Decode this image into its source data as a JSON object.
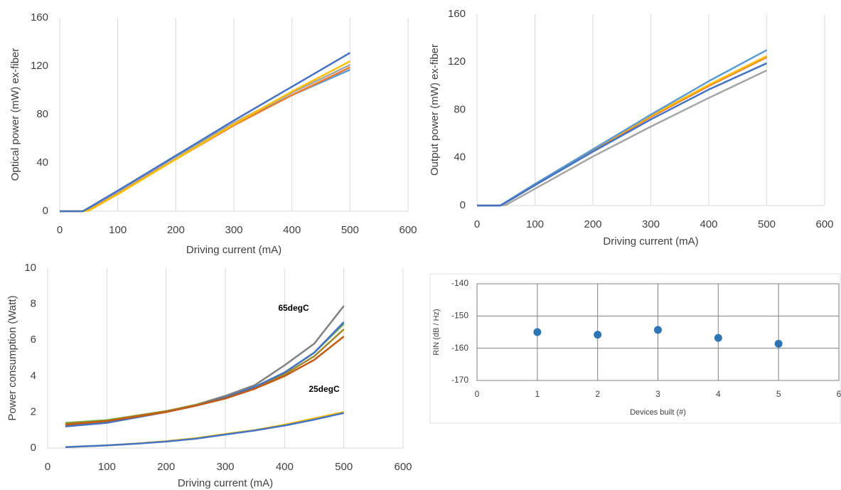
{
  "chart_data": [
    {
      "type": "line",
      "ylabel": "Optical power (mW) ex-fiber",
      "xlabel": "Driving current (mA)",
      "x": [
        0,
        40,
        50,
        100,
        200,
        300,
        400,
        500
      ],
      "series": [
        {
          "color": "#5b9bd5",
          "values": [
            0,
            0,
            2.5,
            16,
            45,
            72,
            96,
            117
          ]
        },
        {
          "color": "#ed7d31",
          "values": [
            0,
            0,
            2,
            15,
            43,
            71,
            96,
            119
          ]
        },
        {
          "color": "#a5a5a5",
          "values": [
            0,
            0,
            2.5,
            16,
            45,
            73,
            98,
            121
          ]
        },
        {
          "color": "#ffc000",
          "values": [
            0,
            0,
            0.5,
            14,
            43,
            72,
            99,
            124
          ]
        },
        {
          "color": "#4472c4",
          "values": [
            0,
            0,
            2.8,
            17,
            46,
            75,
            103,
            131
          ]
        }
      ],
      "xlim": [
        0,
        600
      ],
      "xticks": [
        0,
        100,
        200,
        300,
        400,
        500,
        600
      ],
      "ylim": [
        0,
        160
      ],
      "yticks": [
        0,
        40,
        80,
        120,
        160
      ],
      "grid": "x"
    },
    {
      "type": "line",
      "ylabel": "Output power (mW) ex-fiber",
      "xlabel": "Driving current (mA)",
      "x": [
        0,
        40,
        50,
        100,
        200,
        300,
        400,
        500
      ],
      "series": [
        {
          "color": "#a5a5a5",
          "values": [
            0,
            0,
            0.5,
            14,
            41,
            66,
            90,
            113
          ]
        },
        {
          "color": "#ed7d31",
          "values": [
            0,
            0,
            2.5,
            17,
            46,
            74,
            100,
            124
          ]
        },
        {
          "color": "#ffc000",
          "values": [
            0,
            0,
            3,
            18,
            47,
            75,
            101,
            125
          ]
        },
        {
          "color": "#5b9bd5",
          "values": [
            0,
            0,
            3,
            18,
            47,
            76,
            104,
            130
          ]
        },
        {
          "color": "#4472c4",
          "values": [
            0,
            0,
            2.5,
            17,
            45,
            72,
            97,
            119
          ]
        }
      ],
      "xlim": [
        0,
        600
      ],
      "xticks": [
        0,
        100,
        200,
        300,
        400,
        500,
        600
      ],
      "ylim": [
        0,
        160
      ],
      "yticks": [
        0,
        40,
        80,
        120,
        160
      ],
      "grid": "x"
    },
    {
      "type": "line",
      "ylabel": "Power consumption (Watt)",
      "xlabel": "Driving current (mA)",
      "annotations": [
        "65degC",
        "25degC"
      ],
      "x": [
        30,
        100,
        150,
        200,
        250,
        300,
        350,
        400,
        450,
        500
      ],
      "series": [
        {
          "color": "#70ad47",
          "values": [
            1.4,
            1.55,
            1.8,
            2.05,
            2.4,
            2.85,
            3.4,
            4.2,
            5.3,
            6.9
          ]
        },
        {
          "color": "#808080",
          "values": [
            1.25,
            1.45,
            1.75,
            2.0,
            2.4,
            2.9,
            3.5,
            4.6,
            5.8,
            7.9
          ]
        },
        {
          "color": "#9e8a2a",
          "values": [
            1.35,
            1.5,
            1.8,
            2.05,
            2.4,
            2.8,
            3.3,
            4.1,
            5.1,
            6.6
          ]
        },
        {
          "color": "#4472c4",
          "values": [
            1.2,
            1.4,
            1.7,
            2.0,
            2.35,
            2.8,
            3.4,
            4.2,
            5.3,
            7.0
          ]
        },
        {
          "color": "#c55a11",
          "values": [
            1.3,
            1.5,
            1.75,
            2.0,
            2.35,
            2.75,
            3.3,
            4.0,
            4.9,
            6.2
          ]
        },
        {
          "color": "#ffc000",
          "values": [
            0.05,
            0.15,
            0.25,
            0.38,
            0.55,
            0.78,
            1.0,
            1.3,
            1.65,
            2.0
          ]
        },
        {
          "color": "#4472c4",
          "values": [
            0.05,
            0.15,
            0.24,
            0.36,
            0.52,
            0.75,
            0.98,
            1.25,
            1.58,
            1.95
          ]
        }
      ],
      "xlim": [
        0,
        600
      ],
      "xticks": [
        0,
        100,
        200,
        300,
        400,
        500,
        600
      ],
      "ylim": [
        0,
        10
      ],
      "yticks": [
        0,
        2,
        4,
        6,
        8,
        10
      ],
      "grid": "x"
    },
    {
      "type": "scatter",
      "ylabel": "RIN (dB / Hz)",
      "xlabel": "Devices built (#)",
      "x": [
        1,
        2,
        3,
        4,
        5
      ],
      "values": [
        -155,
        -155.8,
        -154.3,
        -156.8,
        -158.6
      ],
      "color": "#2e75b6",
      "xlim": [
        0,
        6
      ],
      "xticks": [
        0,
        1,
        2,
        3,
        4,
        5,
        6
      ],
      "ylim": [
        -170,
        -140
      ],
      "yticks": [
        -170,
        -160,
        -150,
        -140
      ],
      "grid": "both"
    }
  ]
}
